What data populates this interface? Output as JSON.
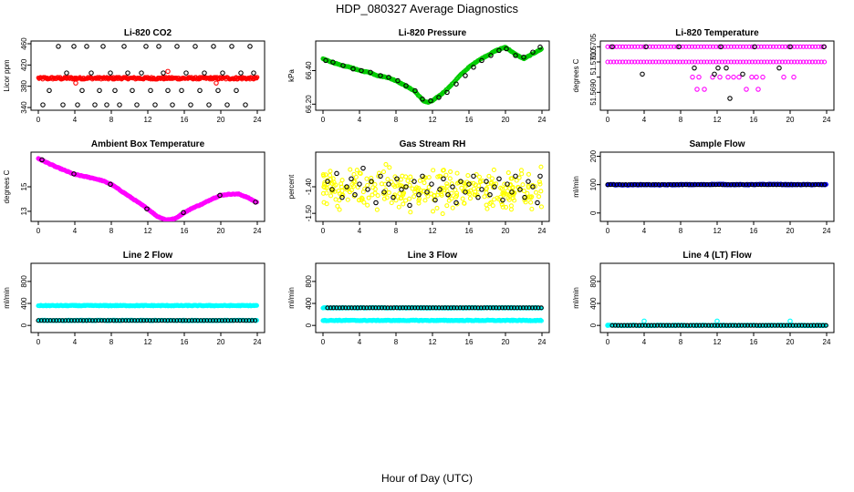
{
  "figure": {
    "title": "HDP_080327  Average Diagnostics",
    "xlabel": "Hour of Day (UTC)"
  },
  "colors": {
    "black": "#000000",
    "red": "#ff0000",
    "green": "#00cc00",
    "magenta": "#ff00ff",
    "yellow": "#ffff00",
    "cyan": "#00ffff",
    "blue": "#0000ff"
  },
  "chart_data": [
    {
      "type": "scatter",
      "title": "Li-820 CO2",
      "ylabel": "Licor ppm",
      "xlim": [
        0,
        24
      ],
      "ylim": [
        340,
        460
      ],
      "xticks": [
        0,
        4,
        8,
        12,
        16,
        20,
        24
      ],
      "yticks": [
        340,
        380,
        420,
        460
      ],
      "series": [
        {
          "name": "dense",
          "color": "red",
          "kind": "band",
          "values": [
            393,
            394,
            395,
            396,
            397
          ]
        },
        {
          "name": "points",
          "color": "black",
          "x": [
            0.5,
            1.2,
            2.2,
            2.7,
            3.1,
            3.9,
            4.3,
            4.8,
            5.3,
            5.8,
            6.2,
            6.7,
            7.1,
            7.5,
            7.9,
            8.4,
            8.9,
            9.4,
            9.8,
            10.3,
            10.8,
            11.3,
            11.8,
            12.3,
            12.8,
            13.2,
            13.7,
            14.2,
            14.7,
            15.2,
            15.7,
            16.2,
            16.7,
            17.2,
            17.7,
            18.2,
            18.7,
            19.2,
            19.7,
            20.2,
            20.7,
            21.2,
            21.7,
            22.2,
            22.7,
            23.2,
            23.6
          ],
          "y": [
            345,
            372,
            455,
            345,
            405,
            455,
            345,
            372,
            455,
            405,
            345,
            372,
            455,
            345,
            405,
            372,
            345,
            455,
            405,
            372,
            345,
            405,
            455,
            372,
            345,
            455,
            405,
            372,
            345,
            455,
            372,
            405,
            345,
            455,
            372,
            405,
            345,
            455,
            372,
            405,
            345,
            455,
            372,
            405,
            345,
            455,
            405
          ]
        },
        {
          "name": "outliers",
          "color": "red",
          "x": [
            4.1,
            14.2,
            19.5
          ],
          "y": [
            386,
            408,
            386
          ]
        }
      ]
    },
    {
      "type": "scatter",
      "title": "Li-820 Pressure",
      "ylabel": "kPa",
      "xlim": [
        0,
        24
      ],
      "ylim": [
        66.18,
        66.56
      ],
      "xticks": [
        0,
        4,
        8,
        12,
        16,
        20,
        24
      ],
      "yticks": [
        66.2,
        66.4
      ],
      "ytick_labels": [
        "66.20",
        "66.40"
      ],
      "series": [
        {
          "name": "trace",
          "color": "green",
          "kind": "trace",
          "x": [
            0,
            1,
            2,
            3,
            4,
            5,
            6,
            7,
            8,
            9,
            10,
            11,
            11.5,
            12,
            13,
            14,
            15,
            16,
            17,
            18,
            19,
            20,
            21,
            22,
            23,
            24
          ],
          "y": [
            66.47,
            66.45,
            66.43,
            66.42,
            66.4,
            66.39,
            66.37,
            66.36,
            66.34,
            66.31,
            66.28,
            66.22,
            66.21,
            66.22,
            66.26,
            66.31,
            66.37,
            66.42,
            66.46,
            66.49,
            66.52,
            66.54,
            66.5,
            66.47,
            66.5,
            66.53
          ]
        },
        {
          "name": "averages",
          "color": "black",
          "x": [
            0.3,
            1.1,
            2.2,
            3.3,
            4.2,
            5.2,
            6.3,
            7.2,
            8.2,
            9.1,
            10.1,
            10.9,
            11.8,
            12.7,
            13.6,
            14.6,
            15.6,
            16.5,
            17.4,
            18.4,
            19.3,
            20.1,
            21.1,
            22.0,
            23.0,
            23.8
          ],
          "y": [
            66.46,
            66.45,
            66.43,
            66.41,
            66.4,
            66.39,
            66.37,
            66.36,
            66.34,
            66.31,
            66.28,
            66.23,
            66.22,
            66.24,
            66.27,
            66.32,
            66.37,
            66.42,
            66.46,
            66.49,
            66.52,
            66.53,
            66.49,
            66.48,
            66.51,
            66.54
          ]
        }
      ]
    },
    {
      "type": "scatter",
      "title": "Li-820 Temperature",
      "ylabel": "degrees C",
      "xlim": [
        0,
        24
      ],
      "ylim": [
        51.5685,
        51.5706
      ],
      "xticks": [
        0,
        4,
        8,
        12,
        16,
        20,
        24
      ],
      "yticks": [
        51.569,
        51.5695,
        51.57,
        51.5705
      ],
      "ytick_labels": [
        "51.5690",
        "",
        "51.5700",
        "51.5705"
      ],
      "series": [
        {
          "name": "top-row",
          "color": "magenta",
          "kind": "row",
          "level": 51.5705,
          "x_from": 0,
          "x_to": 24
        },
        {
          "name": "mid-row",
          "color": "magenta",
          "kind": "row",
          "level": 51.57,
          "x_from": 0,
          "x_to": 24
        },
        {
          "name": "low",
          "color": "magenta",
          "x": [
            9.3,
            10.0,
            11.5,
            12.3,
            13.2,
            14.4,
            15.8,
            16.3,
            17.0,
            19.3,
            20.4,
            9.8,
            15.2,
            10.6,
            16.5,
            13.8
          ],
          "y": [
            51.5695,
            51.5695,
            51.5695,
            51.5695,
            51.5695,
            51.5695,
            51.5695,
            51.5695,
            51.5695,
            51.5695,
            51.5695,
            51.5691,
            51.5691,
            51.5691,
            51.5691,
            51.5695
          ]
        },
        {
          "name": "black",
          "color": "black",
          "x": [
            3.8,
            9.5,
            11.7,
            12.1,
            13.0,
            13.4,
            14.8,
            18.8,
            0.5,
            4.2,
            7.8,
            12.4,
            16.1,
            20.0,
            23.7
          ],
          "y": [
            51.5696,
            51.5698,
            51.5696,
            51.5698,
            51.5698,
            51.5688,
            51.5696,
            51.5698,
            51.5705,
            51.5705,
            51.5705,
            51.5705,
            51.5705,
            51.5705,
            51.5705
          ]
        }
      ]
    },
    {
      "type": "scatter",
      "title": "Ambient Box Temperature",
      "ylabel": "degrees C",
      "xlim": [
        0,
        24
      ],
      "ylim": [
        12.4,
        17.6
      ],
      "xticks": [
        0,
        4,
        8,
        12,
        16,
        20,
        24
      ],
      "yticks": [
        13,
        15
      ],
      "series": [
        {
          "name": "trace",
          "color": "magenta",
          "kind": "trace",
          "x": [
            0,
            1,
            2,
            3,
            4,
            5,
            6,
            7,
            8,
            9,
            10,
            11,
            12,
            13,
            14,
            15,
            16,
            17,
            18,
            19,
            20,
            21,
            22,
            23,
            24
          ],
          "y": [
            17.3,
            16.95,
            16.6,
            16.3,
            16.0,
            15.85,
            15.7,
            15.5,
            15.2,
            14.7,
            14.2,
            13.7,
            13.2,
            12.6,
            12.3,
            12.4,
            12.9,
            13.3,
            13.6,
            14.0,
            14.3,
            14.4,
            14.4,
            14.1,
            13.7
          ]
        },
        {
          "name": "averages",
          "color": "black",
          "x": [
            0.4,
            3.9,
            7.9,
            11.9,
            15.9,
            19.9,
            23.8
          ],
          "y": [
            17.2,
            16.05,
            15.2,
            13.2,
            12.9,
            14.3,
            13.75
          ]
        }
      ]
    },
    {
      "type": "scatter",
      "title": "Gas Stream RH",
      "ylabel": "percent",
      "xlim": [
        0,
        24
      ],
      "ylim": [
        -1.52,
        -1.28
      ],
      "xticks": [
        0,
        4,
        8,
        12,
        16,
        20,
        24
      ],
      "yticks": [
        -1.5,
        -1.4
      ],
      "ytick_labels": [
        "-1.50",
        "-1.40"
      ],
      "series": [
        {
          "name": "cloud",
          "color": "yellow",
          "kind": "cloud",
          "center": -1.41,
          "spread": 0.045,
          "count": 320
        },
        {
          "name": "averages",
          "color": "black",
          "x": [
            0.5,
            1.0,
            1.5,
            2.1,
            2.6,
            3.1,
            3.5,
            4.0,
            4.4,
            4.9,
            5.3,
            5.8,
            6.3,
            6.7,
            7.2,
            7.7,
            8.1,
            8.6,
            9.1,
            9.5,
            10.0,
            10.5,
            10.9,
            11.4,
            11.9,
            12.3,
            12.8,
            13.2,
            13.7,
            14.2,
            14.6,
            15.1,
            15.6,
            16.0,
            16.5,
            17.0,
            17.4,
            17.9,
            18.3,
            18.8,
            19.3,
            19.7,
            20.2,
            20.7,
            21.1,
            21.6,
            22.1,
            22.5,
            23.0,
            23.5,
            23.8
          ],
          "y": [
            -1.38,
            -1.41,
            -1.35,
            -1.44,
            -1.4,
            -1.37,
            -1.43,
            -1.39,
            -1.33,
            -1.41,
            -1.38,
            -1.46,
            -1.36,
            -1.42,
            -1.39,
            -1.44,
            -1.37,
            -1.41,
            -1.4,
            -1.47,
            -1.38,
            -1.43,
            -1.36,
            -1.42,
            -1.39,
            -1.45,
            -1.41,
            -1.37,
            -1.43,
            -1.4,
            -1.46,
            -1.38,
            -1.42,
            -1.39,
            -1.36,
            -1.44,
            -1.41,
            -1.38,
            -1.43,
            -1.4,
            -1.37,
            -1.45,
            -1.39,
            -1.42,
            -1.36,
            -1.41,
            -1.44,
            -1.38,
            -1.4,
            -1.46,
            -1.36
          ]
        }
      ]
    },
    {
      "type": "scatter",
      "title": "Sample Flow",
      "ylabel": "ml/min",
      "xlim": [
        0,
        24
      ],
      "ylim": [
        -20,
        205
      ],
      "xticks": [
        0,
        4,
        8,
        12,
        16,
        20,
        24
      ],
      "yticks": [
        0,
        100,
        200
      ],
      "series": [
        {
          "name": "trace",
          "color": "blue",
          "kind": "trace",
          "x": [
            0,
            2,
            4,
            6,
            8,
            10,
            12,
            14,
            16,
            18,
            20,
            22,
            24
          ],
          "y": [
            100,
            99,
            100,
            99,
            100,
            100,
            101,
            100,
            100,
            101,
            100,
            100,
            100
          ]
        },
        {
          "name": "averages",
          "color": "black",
          "kind": "row",
          "level": 100,
          "x_from": 0,
          "x_to": 24
        }
      ]
    },
    {
      "type": "scatter",
      "title": "Line 2 Flow",
      "ylabel": "ml/min",
      "xlim": [
        0,
        24
      ],
      "ylim": [
        -80,
        1080
      ],
      "xticks": [
        0,
        4,
        8,
        12,
        16,
        20,
        24
      ],
      "yticks": [
        0,
        400,
        800
      ],
      "series": [
        {
          "name": "high",
          "color": "cyan",
          "kind": "trace",
          "x": [
            0,
            24
          ],
          "y": [
            360,
            360
          ]
        },
        {
          "name": "low",
          "color": "cyan",
          "kind": "trace",
          "x": [
            0,
            24
          ],
          "y": [
            90,
            90
          ]
        },
        {
          "name": "averages",
          "color": "black",
          "kind": "row",
          "level": 90,
          "x_from": 0,
          "x_to": 24
        }
      ]
    },
    {
      "type": "scatter",
      "title": "Line 3 Flow",
      "ylabel": "ml/min",
      "xlim": [
        0,
        24
      ],
      "ylim": [
        -80,
        1080
      ],
      "xticks": [
        0,
        4,
        8,
        12,
        16,
        20,
        24
      ],
      "yticks": [
        0,
        400,
        800
      ],
      "series": [
        {
          "name": "high",
          "color": "cyan",
          "kind": "trace",
          "x": [
            0,
            24
          ],
          "y": [
            320,
            320
          ]
        },
        {
          "name": "low",
          "color": "cyan",
          "kind": "trace",
          "x": [
            0,
            24
          ],
          "y": [
            90,
            90
          ]
        },
        {
          "name": "averages",
          "color": "black",
          "kind": "row",
          "level": 320,
          "x_from": 0.5,
          "x_to": 24
        }
      ]
    },
    {
      "type": "scatter",
      "title": "Line 4 (LT) Flow",
      "ylabel": "ml/min",
      "xlim": [
        0,
        24
      ],
      "ylim": [
        -80,
        1080
      ],
      "xticks": [
        0,
        4,
        8,
        12,
        16,
        20,
        24
      ],
      "yticks": [
        0,
        400,
        800
      ],
      "series": [
        {
          "name": "base",
          "color": "cyan",
          "kind": "trace",
          "x": [
            0,
            24
          ],
          "y": [
            0,
            0
          ]
        },
        {
          "name": "spikes",
          "color": "cyan",
          "x": [
            4,
            12,
            20,
            0
          ],
          "y": [
            80,
            80,
            80,
            0
          ]
        },
        {
          "name": "averages",
          "color": "black",
          "kind": "row",
          "level": 0,
          "x_from": 0.5,
          "x_to": 24
        }
      ]
    }
  ]
}
